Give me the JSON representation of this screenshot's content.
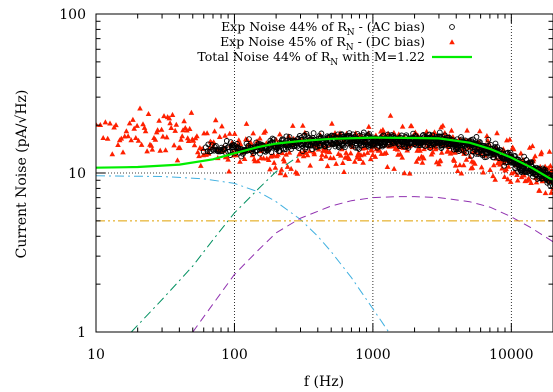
{
  "chart_data": {
    "type": "scatter",
    "title": "",
    "xlabel": "f (Hz)",
    "ylabel": "Current Noise (pA/√Hz)",
    "xscale": "log",
    "yscale": "log",
    "xlim": [
      10,
      20000
    ],
    "ylim": [
      1,
      100
    ],
    "x_ticks": [
      {
        "value": 10,
        "label": "10"
      },
      {
        "value": 100,
        "label": "100"
      },
      {
        "value": 1000,
        "label": "1000"
      },
      {
        "value": 10000,
        "label": "10000"
      }
    ],
    "y_ticks": [
      {
        "value": 1,
        "label": "1"
      },
      {
        "value": 10,
        "label": "10"
      },
      {
        "value": 100,
        "label": "100"
      }
    ],
    "grid": "dotted lines at x = 100, 1000, 10000 and y = 10",
    "legend_position": "top-right",
    "series": [
      {
        "name": "Exp Noise 44% of R",
        "name_sub": "N",
        "name_tail": " - (AC bias)",
        "marker": "open-circle",
        "color": "#000000",
        "x_range": [
          60,
          20000
        ],
        "level_db": [
          [
            60,
            14.0
          ],
          [
            100,
            14.0
          ],
          [
            200,
            15.0
          ],
          [
            500,
            16.0
          ],
          [
            1000,
            16.0
          ],
          [
            3000,
            16.0
          ],
          [
            7000,
            14.0
          ],
          [
            10000,
            12.0
          ],
          [
            15000,
            10.5
          ],
          [
            20000,
            9.0
          ]
        ],
        "spread": 0.09
      },
      {
        "name": "Exp Noise 45% of R",
        "name_sub": "N",
        "name_tail": " - (DC bias)",
        "marker": "filled-triangle",
        "color": "#ff2000",
        "x_range": [
          10,
          20000
        ],
        "level_db": [
          [
            10,
            17.0
          ],
          [
            30,
            18.0
          ],
          [
            60,
            16.0
          ],
          [
            100,
            14.0
          ],
          [
            200,
            14.0
          ],
          [
            500,
            14.5
          ],
          [
            1000,
            15.0
          ],
          [
            3000,
            15.0
          ],
          [
            7000,
            13.0
          ],
          [
            10000,
            11.5
          ],
          [
            20000,
            9.0
          ]
        ],
        "spread": 0.28
      },
      {
        "name": "Total Noise 44% of R",
        "name_sub": "N",
        "name_tail": " with M=1.22",
        "marker": "line",
        "color": "#00ee00",
        "points": [
          [
            10,
            10.8
          ],
          [
            20,
            10.9
          ],
          [
            40,
            11.3
          ],
          [
            70,
            12.2
          ],
          [
            100,
            13.3
          ],
          [
            150,
            14.6
          ],
          [
            200,
            15.3
          ],
          [
            300,
            15.9
          ],
          [
            500,
            16.4
          ],
          [
            800,
            16.6
          ],
          [
            1000,
            16.7
          ],
          [
            2000,
            16.6
          ],
          [
            3000,
            16.5
          ],
          [
            5000,
            15.5
          ],
          [
            7000,
            14.2
          ],
          [
            10000,
            12.5
          ],
          [
            14000,
            10.8
          ],
          [
            20000,
            9.0
          ]
        ]
      },
      {
        "marker": "dash-dot",
        "color": "#40b0e0",
        "points": [
          [
            10,
            9.6
          ],
          [
            30,
            9.5
          ],
          [
            60,
            9.2
          ],
          [
            100,
            8.6
          ],
          [
            150,
            7.6
          ],
          [
            200,
            6.6
          ],
          [
            300,
            5.1
          ],
          [
            400,
            4.0
          ],
          [
            500,
            3.2
          ],
          [
            700,
            2.2
          ],
          [
            1000,
            1.4
          ],
          [
            1300,
            1.0
          ]
        ]
      },
      {
        "marker": "dash-dot",
        "color": "#009060",
        "points": [
          [
            18,
            1.0
          ],
          [
            30,
            1.6
          ],
          [
            50,
            2.6
          ],
          [
            70,
            3.8
          ],
          [
            100,
            5.6
          ],
          [
            150,
            8.0
          ],
          [
            200,
            10.2
          ],
          [
            300,
            13.0
          ],
          [
            500,
            15.0
          ],
          [
            700,
            15.6
          ],
          [
            1000,
            15.8
          ],
          [
            2000,
            15.7
          ],
          [
            3000,
            15.3
          ],
          [
            5000,
            14.0
          ],
          [
            7000,
            13.0
          ],
          [
            10000,
            11.5
          ],
          [
            14000,
            9.8
          ],
          [
            20000,
            8.3
          ]
        ]
      },
      {
        "marker": "dashed",
        "color": "#9030b0",
        "points": [
          [
            50,
            1.0
          ],
          [
            70,
            1.5
          ],
          [
            100,
            2.3
          ],
          [
            150,
            3.3
          ],
          [
            200,
            4.2
          ],
          [
            300,
            5.2
          ],
          [
            500,
            6.2
          ],
          [
            700,
            6.7
          ],
          [
            1000,
            7.0
          ],
          [
            1500,
            7.1
          ],
          [
            2000,
            7.1
          ],
          [
            3000,
            7.0
          ],
          [
            5000,
            6.6
          ],
          [
            7000,
            6.1
          ],
          [
            10000,
            5.3
          ],
          [
            14000,
            4.5
          ],
          [
            20000,
            3.7
          ]
        ]
      },
      {
        "marker": "dash-dot-dot",
        "color": "#e0a000",
        "points": [
          [
            10,
            5.0
          ],
          [
            20000,
            5.0
          ]
        ]
      }
    ]
  }
}
